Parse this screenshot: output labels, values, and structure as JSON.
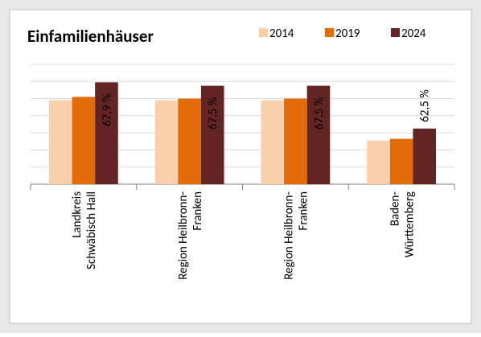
{
  "chart_data": {
    "type": "bar",
    "title": "Einfamilienhäuser",
    "categories": [
      "Landkreis\nSchwäbisch Hall",
      "Region Heilbronn-\nFranken",
      "Region Heilbronn-\nFranken",
      "Baden-\nWürttemberg"
    ],
    "series": [
      {
        "name": "2014",
        "color": "#fad0aa",
        "values": [
          65.8,
          65.8,
          65.8,
          61.1
        ]
      },
      {
        "name": "2019",
        "color": "#e36c0a",
        "values": [
          66.2,
          66.0,
          66.0,
          61.3
        ]
      },
      {
        "name": "2024",
        "color": "#632523",
        "values": [
          67.9,
          67.5,
          67.5,
          62.5
        ],
        "value_labels": [
          "67,9 %",
          "67,5 %",
          "67,5 %",
          "62,5 %"
        ]
      }
    ],
    "ylim": [
      56,
      70
    ],
    "yticks": [
      56,
      58,
      60,
      62,
      64,
      66,
      68,
      70
    ],
    "grid": true,
    "legend": "top-right"
  }
}
